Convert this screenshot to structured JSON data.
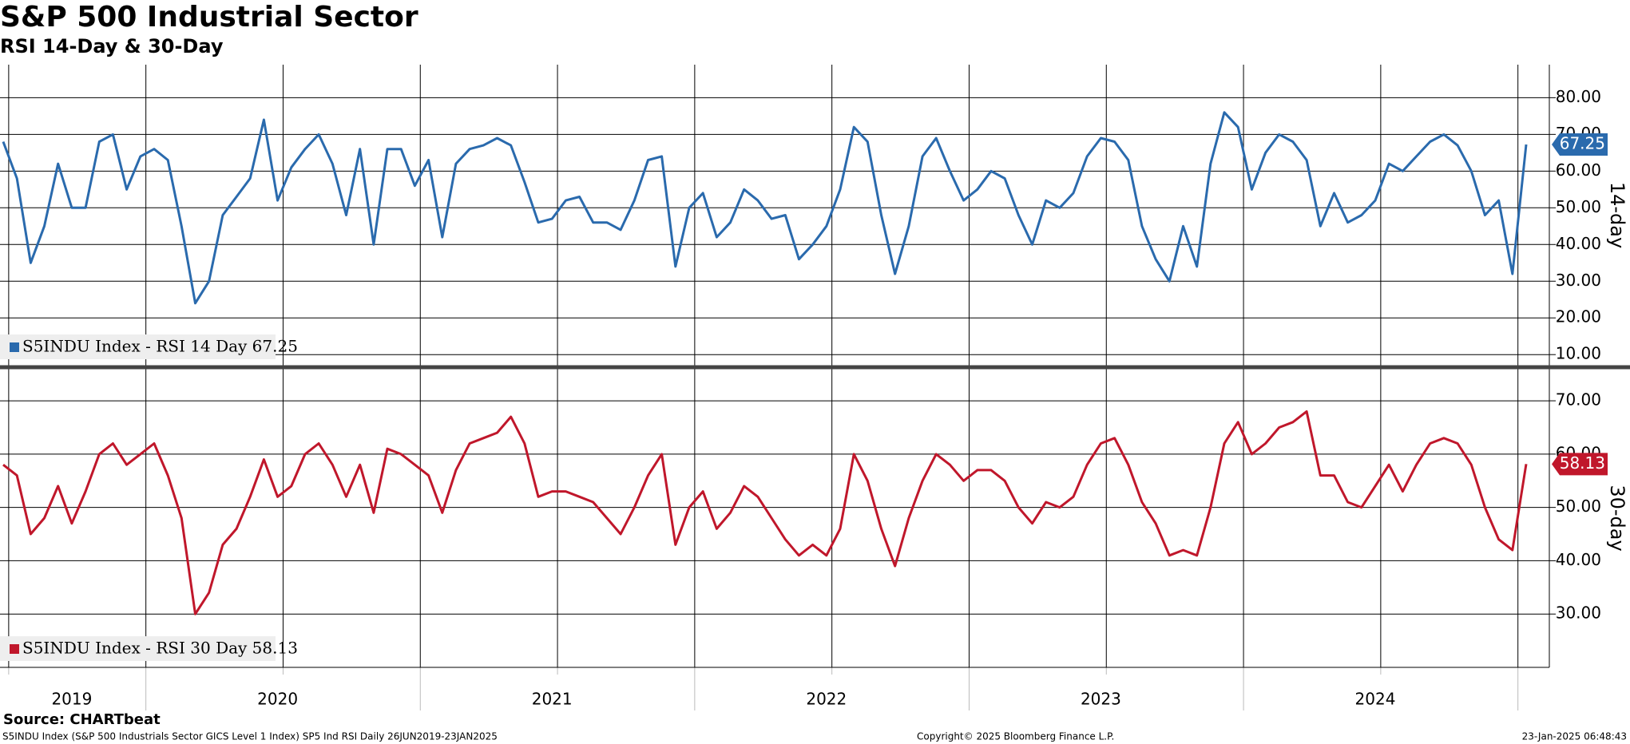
{
  "title": "S&P 500 Industrial Sector",
  "subtitle": "RSI 14-Day & 30-Day",
  "source": "Source: CHARTbeat",
  "footer": {
    "left": "S5INDU Index (S&P 500 Industrials Sector GICS Level 1 Index) SP5 Ind RSI  Daily 26JUN2019-23JAN2025",
    "center": "Copyright© 2025 Bloomberg Finance L.P.",
    "right": "23-Jan-2025 06:48:43"
  },
  "chart_data": {
    "type": "line",
    "categories": [
      null,
      null,
      null,
      null,
      null,
      "2019",
      null,
      null,
      null,
      null,
      null,
      null,
      null,
      null,
      null,
      null,
      null,
      null,
      null,
      null,
      "2020",
      null,
      null,
      null,
      null,
      null,
      null,
      null,
      null,
      null,
      null,
      null,
      null,
      null,
      null,
      null,
      null,
      null,
      null,
      null,
      "2021",
      null,
      null,
      null,
      null,
      null,
      null,
      null,
      null,
      null,
      null,
      null,
      null,
      null,
      null,
      null,
      null,
      null,
      null,
      null,
      "2022",
      null,
      null,
      null,
      null,
      null,
      null,
      null,
      null,
      null,
      null,
      null,
      null,
      null,
      null,
      null,
      null,
      null,
      null,
      null,
      "2023",
      null,
      null,
      null,
      null,
      null,
      null,
      null,
      null,
      null,
      null,
      null,
      null,
      null,
      null,
      null,
      null,
      null,
      null,
      null,
      "2024",
      null,
      null,
      null,
      null,
      null,
      null,
      null,
      null,
      null,
      null,
      null
    ],
    "panels": [
      {
        "ylabel": "14-day",
        "ylim": [
          7,
          89
        ],
        "yticks": [
          10,
          20,
          30,
          40,
          50,
          60,
          70,
          80
        ],
        "yticks_labels": [
          "10.00",
          "20.00",
          "30.00",
          "40.00",
          "50.00",
          "60.00",
          "70.00",
          "80.00"
        ],
        "series": [
          {
            "name": "S5INDU Index - RSI 14 Day 67.25",
            "color": "#2a6aad",
            "values": [
              68,
              58,
              35,
              45,
              62,
              50,
              50,
              68,
              70,
              55,
              64,
              66,
              63,
              45,
              24,
              30,
              48,
              53,
              58,
              74,
              52,
              61,
              66,
              70,
              62,
              48,
              66,
              40,
              66,
              66,
              56,
              63,
              42,
              62,
              66,
              67,
              69,
              67,
              57,
              46,
              47,
              52,
              53,
              46,
              46,
              44,
              52,
              63,
              64,
              34,
              50,
              54,
              42,
              46,
              55,
              52,
              47,
              48,
              36,
              40,
              45,
              55,
              72,
              68,
              48,
              32,
              45,
              64,
              69,
              60,
              52,
              55,
              60,
              58,
              48,
              40,
              52,
              50,
              54,
              64,
              69,
              68,
              63,
              45,
              36,
              30,
              45,
              34,
              62,
              76,
              72,
              55,
              65,
              70,
              68,
              63,
              45,
              54,
              46,
              48,
              52,
              62,
              60,
              64,
              68,
              70,
              67,
              60,
              48,
              52,
              32,
              67.25
            ]
          }
        ]
      },
      {
        "ylabel": "30-day",
        "ylim": [
          20,
          76
        ],
        "yticks": [
          30,
          40,
          50,
          60,
          70
        ],
        "yticks_labels": [
          "30.00",
          "40.00",
          "50.00",
          "60.00",
          "70.00"
        ],
        "series": [
          {
            "name": "S5INDU Index - RSI 30 Day 58.13",
            "color": "#c0172b",
            "values": [
              58,
              56,
              45,
              48,
              54,
              47,
              53,
              60,
              62,
              58,
              60,
              62,
              56,
              48,
              30,
              34,
              43,
              46,
              52,
              59,
              52,
              54,
              60,
              62,
              58,
              52,
              58,
              49,
              61,
              60,
              58,
              56,
              49,
              57,
              62,
              63,
              64,
              67,
              62,
              52,
              53,
              53,
              52,
              51,
              48,
              45,
              50,
              56,
              60,
              43,
              50,
              53,
              46,
              49,
              54,
              52,
              48,
              44,
              41,
              43,
              41,
              46,
              60,
              55,
              46,
              39,
              48,
              55,
              60,
              58,
              55,
              57,
              57,
              55,
              50,
              47,
              51,
              50,
              52,
              58,
              62,
              63,
              58,
              51,
              47,
              41,
              42,
              41,
              50,
              62,
              66,
              60,
              62,
              65,
              66,
              68,
              56,
              56,
              51,
              50,
              54,
              58,
              53,
              58,
              62,
              63,
              62,
              58,
              50,
              44,
              42,
              58.13
            ]
          }
        ]
      }
    ]
  }
}
